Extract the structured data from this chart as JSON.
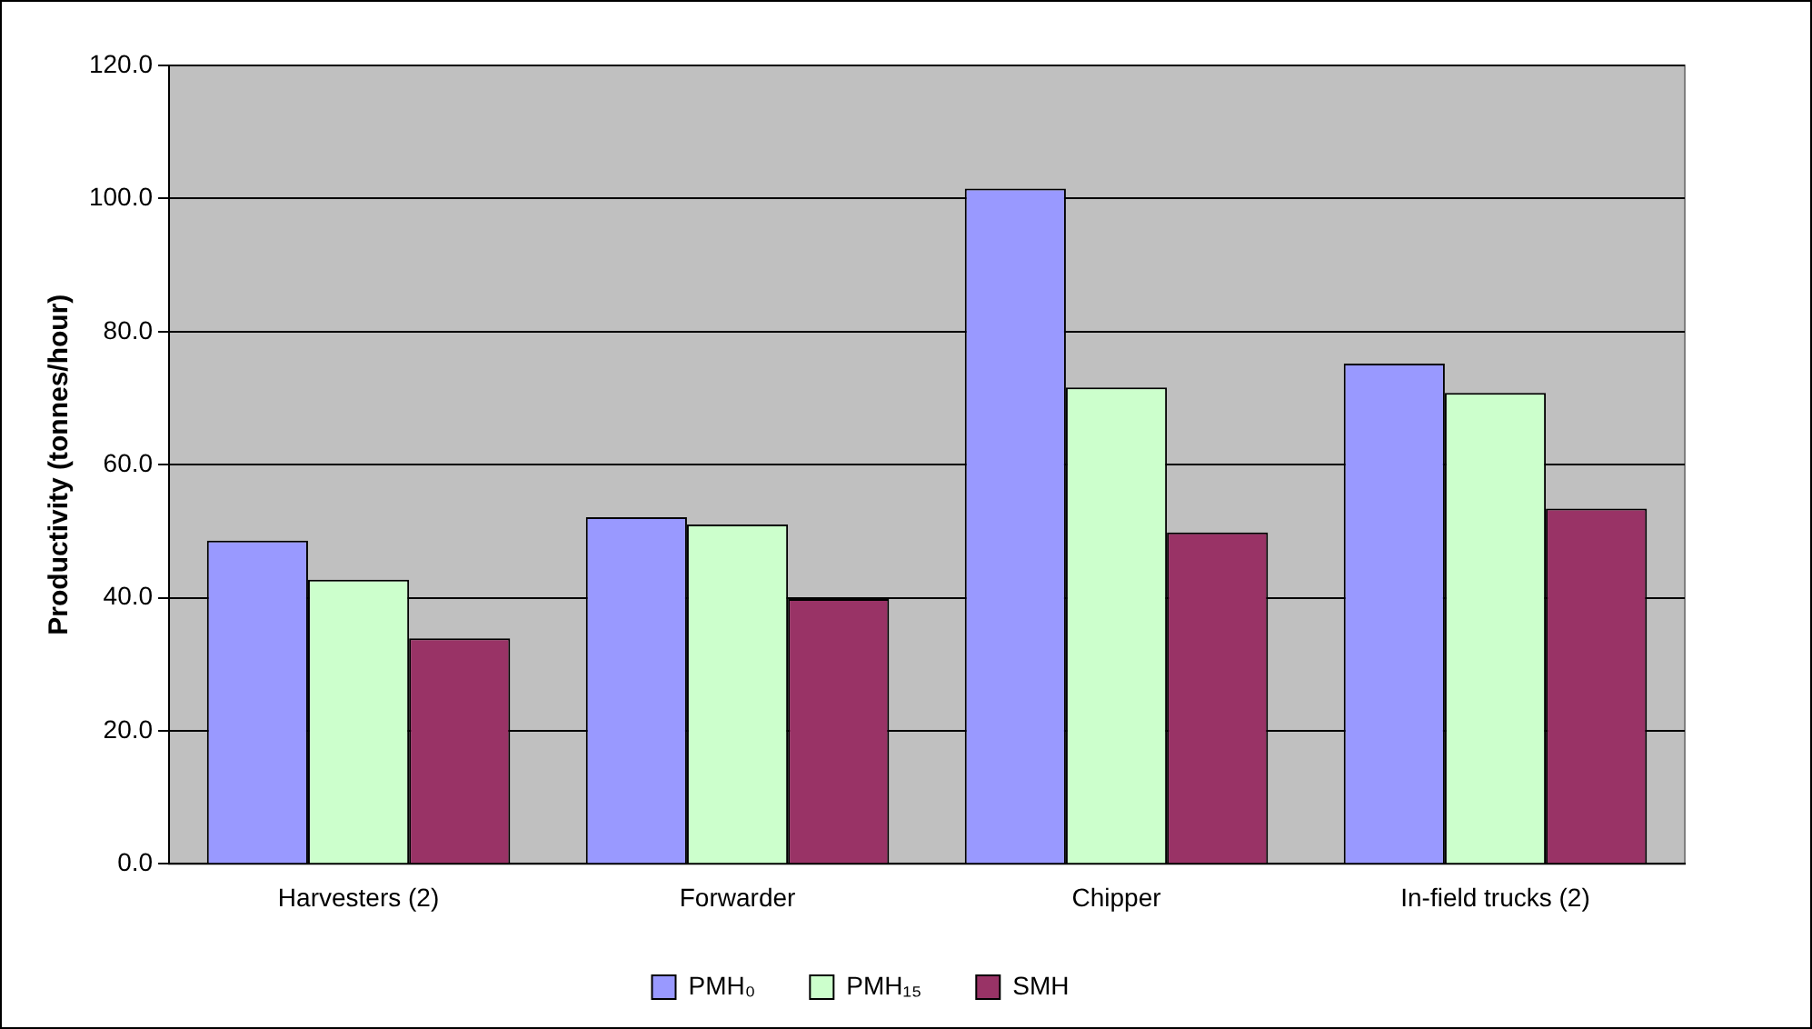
{
  "chart_data": {
    "type": "bar",
    "ylabel": "Productivity (tonnes/hour)",
    "categories": [
      "Harvesters (2)",
      "Forwarder",
      "Chipper",
      "In-field trucks (2)"
    ],
    "series": [
      {
        "name": "PMH₀",
        "color": "#9999ff",
        "values": [
          48.6,
          52.1,
          101.5,
          75.2
        ]
      },
      {
        "name": "PMH₁₅",
        "color": "#ccffcc",
        "values": [
          42.7,
          51.0,
          71.6,
          70.8
        ]
      },
      {
        "name": "SMH",
        "color": "#993366",
        "values": [
          33.9,
          39.8,
          49.8,
          53.4
        ]
      }
    ],
    "ylim": [
      0,
      120
    ],
    "yticks": [
      {
        "value": 0,
        "label": "0.0"
      },
      {
        "value": 20,
        "label": "20.0"
      },
      {
        "value": 40,
        "label": "40.0"
      },
      {
        "value": 60,
        "label": "60.0"
      },
      {
        "value": 80,
        "label": "80.0"
      },
      {
        "value": 100,
        "label": "100.0"
      },
      {
        "value": 120,
        "label": "120.0"
      }
    ],
    "grid": "y",
    "legend": "bottom"
  }
}
